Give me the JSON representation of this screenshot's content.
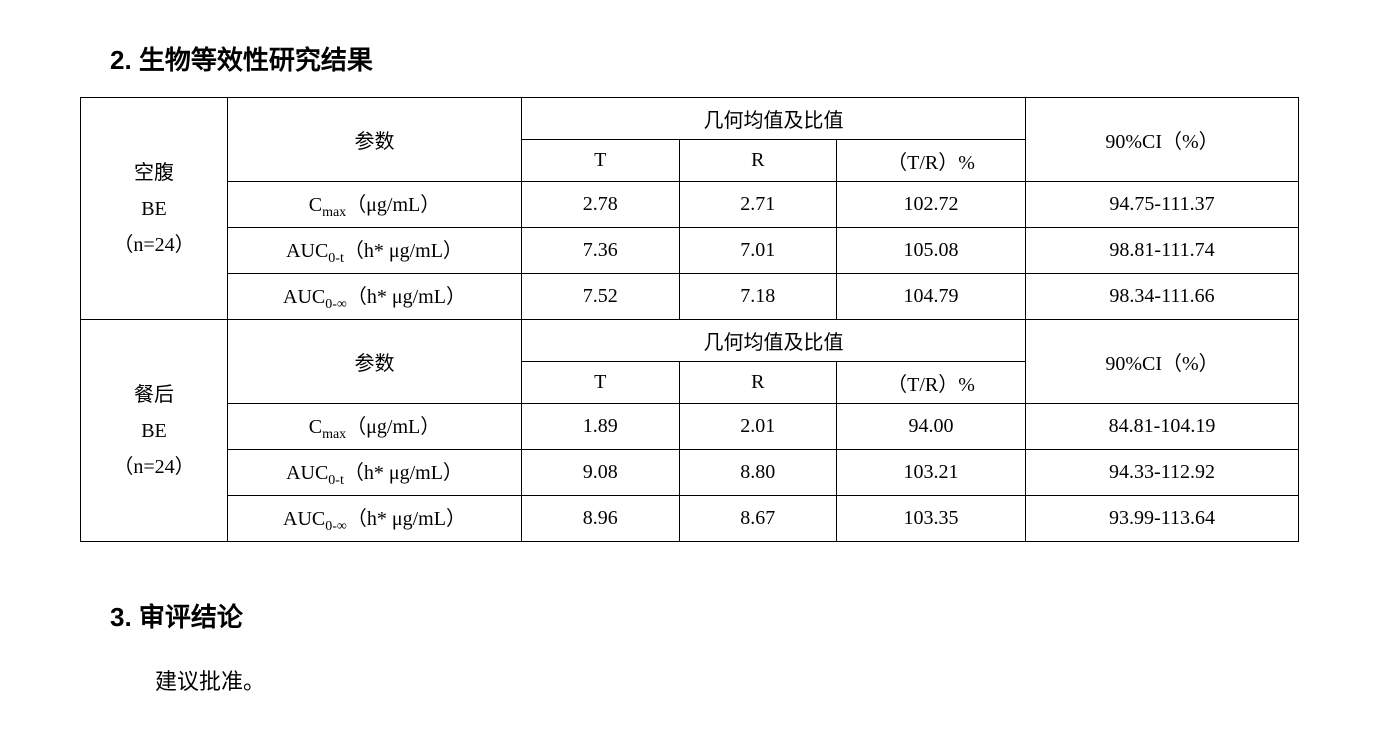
{
  "section2": {
    "heading": "2. 生物等效性研究结果",
    "table": {
      "type": "table",
      "border_color": "#000000",
      "background_color": "#ffffff",
      "text_color": "#000000",
      "font_size_pt": 15,
      "groups": [
        {
          "label_line1": "空腹",
          "label_line2": "BE",
          "label_line3": "（n=24）",
          "header_param": "参数",
          "header_geo": "几何均值及比值",
          "header_ci": "90%CI（%）",
          "subheader_t": "T",
          "subheader_r": "R",
          "subheader_ratio": "（T/R）%",
          "rows": [
            {
              "param_html": "C<sub>max</sub>（μg/mL）",
              "t": "2.78",
              "r": "2.71",
              "ratio": "102.72",
              "ci": "94.75-111.37"
            },
            {
              "param_html": "AUC<sub>0-t</sub>（h* μg/mL）",
              "t": "7.36",
              "r": "7.01",
              "ratio": "105.08",
              "ci": "98.81-111.74"
            },
            {
              "param_html": "AUC<sub>0-∞</sub>（h* μg/mL）",
              "t": "7.52",
              "r": "7.18",
              "ratio": "104.79",
              "ci": "98.34-111.66"
            }
          ]
        },
        {
          "label_line1": "餐后",
          "label_line2": "BE",
          "label_line3": "（n=24）",
          "header_param": "参数",
          "header_geo": "几何均值及比值",
          "header_ci": "90%CI（%）",
          "subheader_t": "T",
          "subheader_r": "R",
          "subheader_ratio": "（T/R）%",
          "rows": [
            {
              "param_html": "C<sub>max</sub>（μg/mL）",
              "t": "1.89",
              "r": "2.01",
              "ratio": "94.00",
              "ci": "84.81-104.19"
            },
            {
              "param_html": "AUC<sub>0-t</sub>（h* μg/mL）",
              "t": "9.08",
              "r": "8.80",
              "ratio": "103.21",
              "ci": "94.33-112.92"
            },
            {
              "param_html": "AUC<sub>0-∞</sub>（h* μg/mL）",
              "t": "8.96",
              "r": "8.67",
              "ratio": "103.35",
              "ci": "93.99-113.64"
            }
          ]
        }
      ],
      "column_widths": {
        "group_label": 140,
        "param": 280,
        "t": 150,
        "r": 150,
        "ratio": 180,
        "ci": 260
      }
    }
  },
  "section3": {
    "heading": "3. 审评结论",
    "conclusion": "建议批准。"
  }
}
